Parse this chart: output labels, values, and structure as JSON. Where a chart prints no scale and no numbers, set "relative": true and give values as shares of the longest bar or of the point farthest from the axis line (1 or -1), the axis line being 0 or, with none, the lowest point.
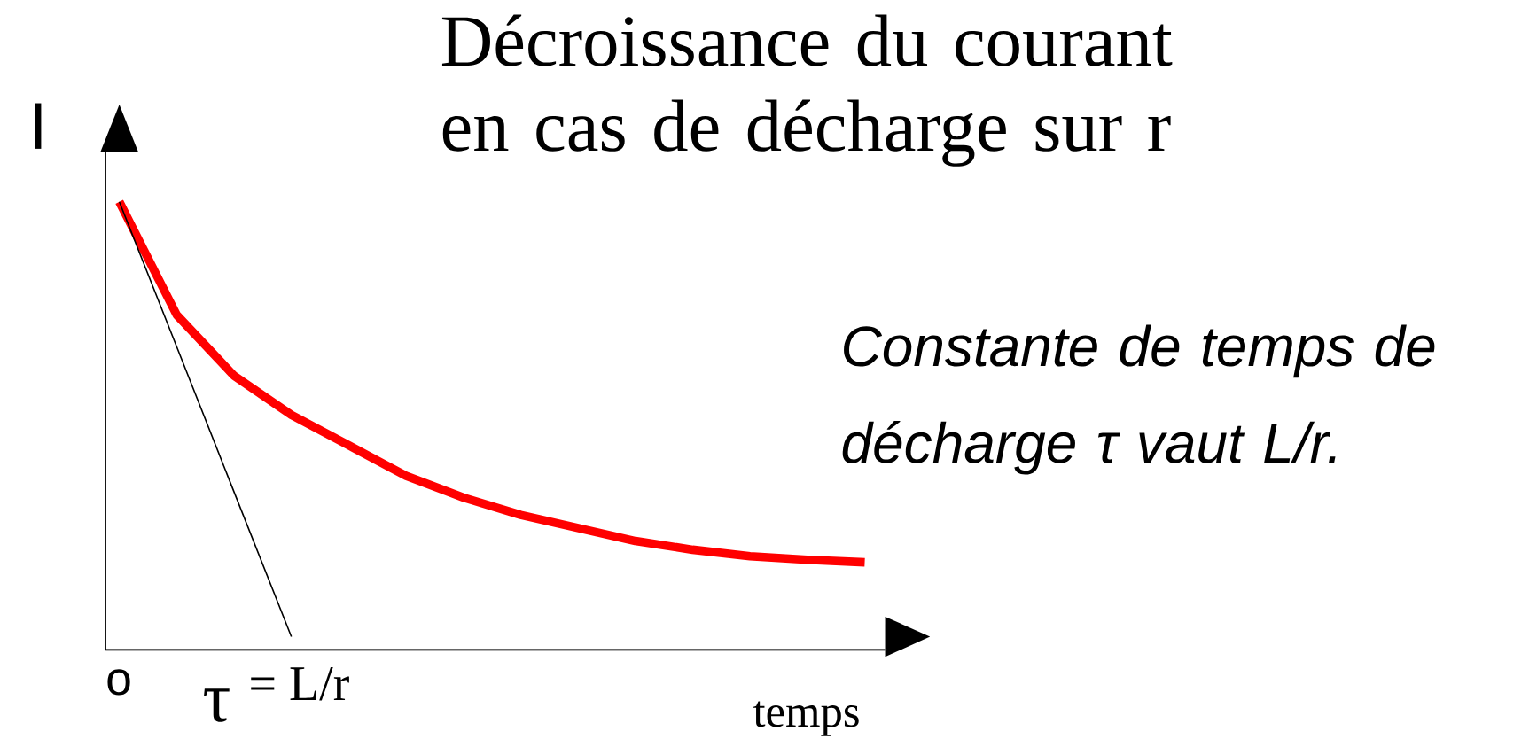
{
  "chart_data": {
    "type": "line",
    "title": "Décroissance du courant en cas de décharge sur r",
    "xlabel": "temps",
    "ylabel": "I",
    "relative": true,
    "categories": [
      null,
      null,
      null,
      null,
      null,
      null,
      null,
      null,
      null,
      null,
      null,
      null,
      null,
      null
    ],
    "annotations": [
      "Constante de temps de décharge τ vaut L/r.",
      "o",
      "τ $^{= L/r}$"
    ],
    "series": [
      {
        "color": "#ff0000",
        "values": [
          1,
          0.74,
          0.6,
          0.51,
          0.44,
          0.37,
          0.32,
          0.28,
          0.25,
          0.22,
          0.2,
          0.185,
          0.177,
          0.171
        ]
      },
      {
        "color": "#000000",
        "values": [
          1,
          0.667,
          0.333,
          0,
          null,
          null,
          null,
          null,
          null,
          null,
          null,
          null,
          null,
          null
        ]
      }
    ]
  }
}
